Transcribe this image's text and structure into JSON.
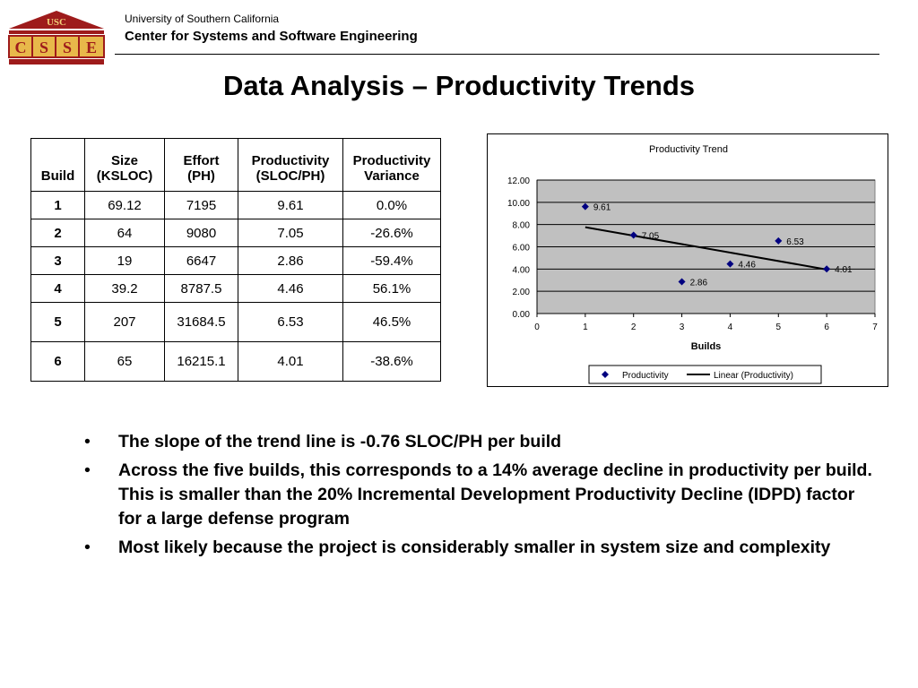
{
  "header": {
    "logo": {
      "top_text": "USC",
      "letters": [
        "C",
        "S",
        "S",
        "E"
      ]
    },
    "university": "University of Southern California",
    "center": "Center for Systems and Software Engineering"
  },
  "title": "Data Analysis – Productivity Trends",
  "table": {
    "headers": [
      "Build",
      "Size (KSLOC)",
      "Effort (PH)",
      "Productivity (SLOC/PH)",
      "Productivity Variance"
    ],
    "header_lines": [
      [
        "Build"
      ],
      [
        "Size",
        "(KSLOC)"
      ],
      [
        "Effort",
        "(PH)"
      ],
      [
        "Productivity",
        "(SLOC/PH)"
      ],
      [
        "Productivity",
        "Variance"
      ]
    ],
    "rows": [
      [
        "1",
        "69.12",
        "7195",
        "9.61",
        "0.0%"
      ],
      [
        "2",
        "64",
        "9080",
        "7.05",
        "-26.6%"
      ],
      [
        "3",
        "19",
        "6647",
        "2.86",
        "-59.4%"
      ],
      [
        "4",
        "39.2",
        "8787.5",
        "4.46",
        "56.1%"
      ],
      [
        "5",
        "207",
        "31684.5",
        "6.53",
        "46.5%"
      ],
      [
        "6",
        "65",
        "16215.1",
        "4.01",
        "-38.6%"
      ]
    ]
  },
  "chart_data": {
    "type": "scatter",
    "title": "Productivity Trend",
    "xlabel": "Builds",
    "ylabel": "",
    "xlim": [
      0,
      7
    ],
    "ylim": [
      0,
      12
    ],
    "x_ticks": [
      "0",
      "1",
      "2",
      "3",
      "4",
      "5",
      "6",
      "7"
    ],
    "y_ticks": [
      "0.00",
      "2.00",
      "4.00",
      "6.00",
      "8.00",
      "10.00",
      "12.00"
    ],
    "series": [
      {
        "name": "Productivity",
        "x": [
          1,
          2,
          3,
          4,
          5,
          6
        ],
        "y": [
          9.61,
          7.05,
          2.86,
          4.46,
          6.53,
          4.01
        ],
        "labels": [
          "9.61",
          "7.05",
          "2.86",
          "4.46",
          "6.53",
          "4.01"
        ],
        "color": "#000080"
      }
    ],
    "trendline": {
      "name": "Linear (Productivity)",
      "x": [
        1,
        6
      ],
      "y": [
        7.76,
        3.96
      ],
      "color": "#000000"
    },
    "plot_background": "#c0c0c0",
    "grid": true,
    "legend_position": "bottom"
  },
  "bullets": [
    "The slope of the trend line is -0.76 SLOC/PH per build",
    "Across the five builds, this corresponds to a 14% average decline in productivity per build. This is smaller than the 20% Incremental Development Productivity Decline (IDPD) factor for a large defense program",
    "Most likely because the project is considerably smaller in system size and complexity"
  ],
  "bullet_glyph": "•",
  "colors": {
    "logo_red": "#9e1b1b",
    "logo_gold": "#e8b84a",
    "marker": "#000080"
  }
}
